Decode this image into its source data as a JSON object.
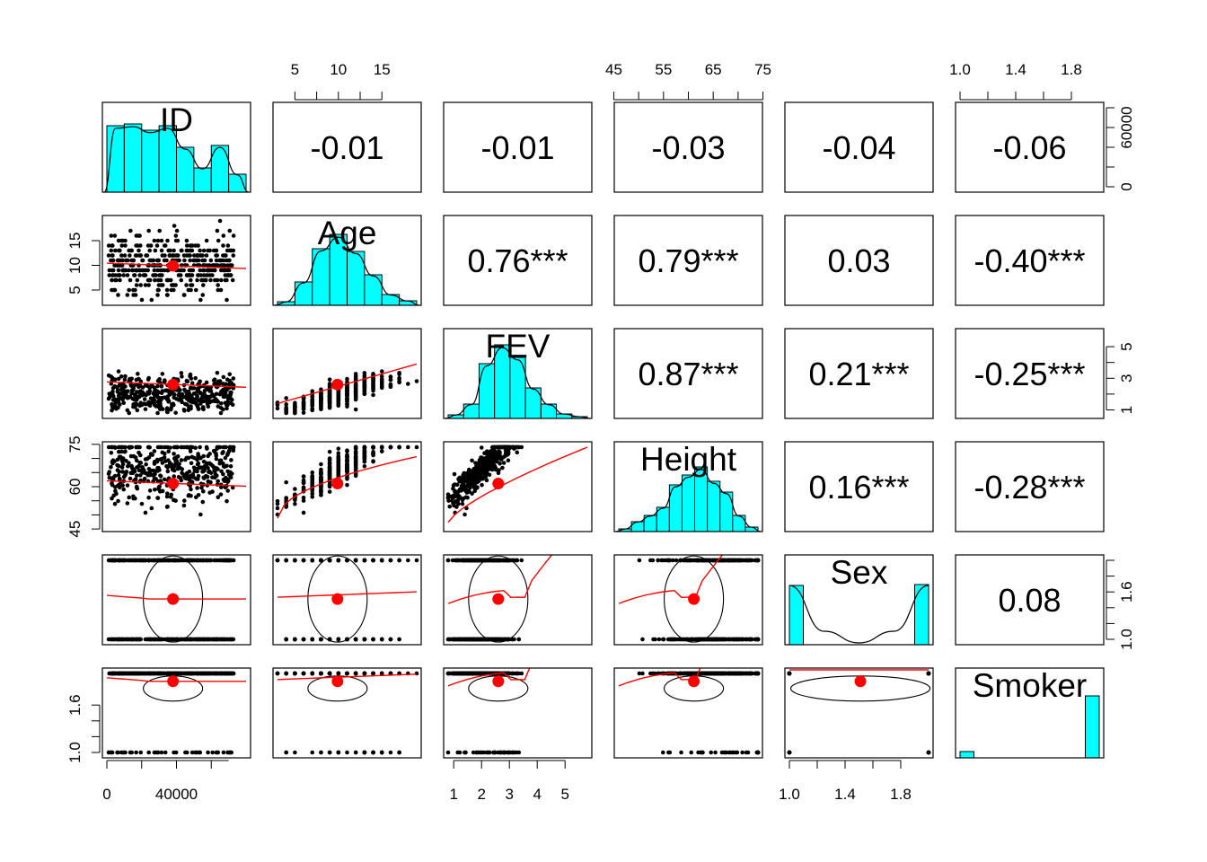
{
  "chart_data": {
    "type": "scatter-matrix",
    "title": "",
    "variables": [
      "ID",
      "Age",
      "FEV",
      "Height",
      "Sex",
      "Smoker"
    ],
    "ranges": {
      "ID": [
        0,
        80000
      ],
      "Age": [
        3,
        19
      ],
      "FEV": [
        0.8,
        5.8
      ],
      "Height": [
        46,
        74
      ],
      "Sex": [
        1,
        2
      ],
      "Smoker": [
        1,
        2
      ]
    },
    "axis_ticks": {
      "top": {
        "Age": [
          "5",
          "10",
          "15"
        ],
        "Height": [
          "45",
          "55",
          "65",
          "75"
        ],
        "Smoker": [
          "1.0",
          "1.4",
          "1.8"
        ]
      },
      "bottom": {
        "ID": [
          "0",
          "40000"
        ],
        "FEV": [
          "1",
          "2",
          "3",
          "4",
          "5"
        ],
        "Sex": [
          "1.0",
          "1.4",
          "1.8"
        ]
      },
      "left": {
        "Age": [
          "5",
          "10",
          "15"
        ],
        "Height": [
          "45",
          "60",
          "75"
        ],
        "Smoker": [
          "1.0",
          "1.6"
        ]
      },
      "right": {
        "ID": [
          "0",
          "60000"
        ],
        "FEV": [
          "1",
          "3",
          "5"
        ],
        "Sex": [
          "1.0",
          "1.6"
        ]
      }
    },
    "correlations": [
      {
        "row": "ID",
        "col": "Age",
        "label": "-0.01"
      },
      {
        "row": "ID",
        "col": "FEV",
        "label": "-0.01"
      },
      {
        "row": "ID",
        "col": "Height",
        "label": "-0.03"
      },
      {
        "row": "ID",
        "col": "Sex",
        "label": "-0.04"
      },
      {
        "row": "ID",
        "col": "Smoker",
        "label": "-0.06"
      },
      {
        "row": "Age",
        "col": "FEV",
        "label": "0.76***"
      },
      {
        "row": "Age",
        "col": "Height",
        "label": "0.79***"
      },
      {
        "row": "Age",
        "col": "Sex",
        "label": "0.03"
      },
      {
        "row": "Age",
        "col": "Smoker",
        "label": "-0.40***"
      },
      {
        "row": "FEV",
        "col": "Height",
        "label": "0.87***"
      },
      {
        "row": "FEV",
        "col": "Sex",
        "label": "0.21***"
      },
      {
        "row": "FEV",
        "col": "Smoker",
        "label": "-0.25***"
      },
      {
        "row": "Height",
        "col": "Sex",
        "label": "0.16***"
      },
      {
        "row": "Height",
        "col": "Smoker",
        "label": "-0.28***"
      },
      {
        "row": "Sex",
        "col": "Smoker",
        "label": "0.08"
      }
    ],
    "histograms": {
      "ID": [
        0.74,
        0.76,
        0.69,
        0.74,
        0.5,
        0.27,
        0.52,
        0.2
      ],
      "Age": [
        0.04,
        0.26,
        0.63,
        0.79,
        0.6,
        0.34,
        0.12,
        0.05
      ],
      "FEV": [
        0.04,
        0.16,
        0.61,
        0.82,
        0.68,
        0.34,
        0.16,
        0.05,
        0.02
      ],
      "Height": [
        0.03,
        0.11,
        0.18,
        0.27,
        0.52,
        0.63,
        0.72,
        0.56,
        0.44,
        0.18,
        0.05
      ],
      "Sex": [
        0.66,
        0,
        0,
        0,
        0,
        0,
        0,
        0,
        0,
        0.67
      ],
      "Smoker": [
        0.07,
        0,
        0,
        0,
        0,
        0,
        0,
        0,
        0,
        0.69
      ]
    },
    "means": {
      "ID": 38000,
      "Age": 9.9,
      "FEV": 2.6,
      "Height": 61.1,
      "Sex": 1.51,
      "Smoker": 1.9
    },
    "point_color": "#000000",
    "fit_color": "#ff0000",
    "hist_fill": "#00ffff"
  }
}
